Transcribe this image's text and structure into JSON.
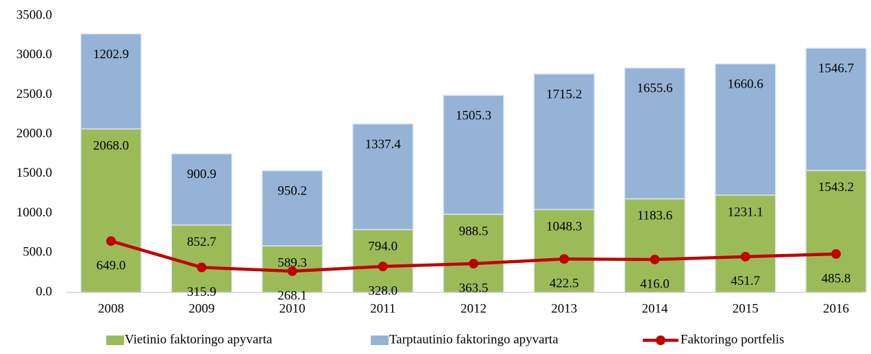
{
  "chart_data": {
    "type": "bar",
    "stacked": true,
    "categories": [
      "2008",
      "2009",
      "2010",
      "2011",
      "2012",
      "2013",
      "2014",
      "2015",
      "2016"
    ],
    "series": [
      {
        "name": "Vietinio faktoringo apyvarta",
        "type": "bar",
        "color": "#9bbb59",
        "values": [
          2068,
          852.7,
          589.3,
          794,
          988.5,
          1048.3,
          1183.6,
          1231.1,
          1543.2
        ],
        "value_labels": [
          "2068.0",
          "852.7",
          "589.3",
          "794.0",
          "988.5",
          "1048.3",
          "1183.6",
          "1231.1",
          "1543.2"
        ]
      },
      {
        "name": "Tarptautinio faktoringo apyvarta",
        "type": "bar",
        "color": "#95b3d7",
        "values": [
          1202.9,
          900.9,
          950.2,
          1337.4,
          1505.3,
          1715.2,
          1655.6,
          1660.6,
          1546.7
        ],
        "value_labels": [
          "1202.9",
          "900.9",
          "950.2",
          "1337.4",
          "1505.3",
          "1715.2",
          "1655.6",
          "1660.6",
          "1546.7"
        ]
      },
      {
        "name": "Faktoringo portfelis",
        "type": "line",
        "color": "#c00000",
        "values": [
          649,
          315.9,
          268.1,
          328,
          363.5,
          422.5,
          416,
          451.7,
          485.8
        ],
        "value_labels": [
          "649.0",
          "315.9",
          "268.1",
          "328.0",
          "363.5",
          "422.5",
          "416.0",
          "451.7",
          "485.8"
        ]
      }
    ],
    "ylim": [
      0,
      3500
    ],
    "yticks": [
      {
        "value": 0,
        "label": "0.0"
      },
      {
        "value": 500,
        "label": "500.0"
      },
      {
        "value": 1000,
        "label": "1000.0"
      },
      {
        "value": 1500,
        "label": "1500.0"
      },
      {
        "value": 2000,
        "label": "2000.0"
      },
      {
        "value": 2500,
        "label": "2500.0"
      },
      {
        "value": 3000,
        "label": "3000.0"
      },
      {
        "value": 3500,
        "label": "3500.0"
      }
    ],
    "grid": false,
    "legend": "bottom"
  }
}
